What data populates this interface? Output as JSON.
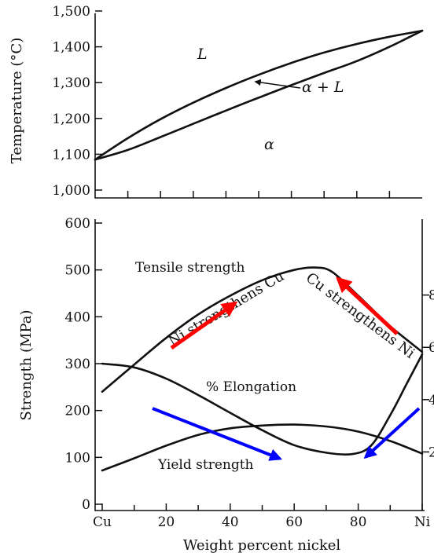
{
  "chart_data": [
    {
      "type": "line",
      "title": "",
      "xlabel": "",
      "ylabel": "Temperature (°C)",
      "xlim": [
        0,
        100
      ],
      "ylim": [
        950,
        1500
      ],
      "y_ticks": [
        "1,000",
        "1,100",
        "1,200",
        "1,300",
        "1,400",
        "1,500"
      ],
      "y_tick_values": [
        1000,
        1100,
        1200,
        1300,
        1400,
        1500
      ],
      "x_minor_ticks": [
        10,
        20,
        30,
        40,
        50,
        60,
        70,
        80,
        90
      ],
      "series": [
        {
          "x": [
            0,
            10,
            20,
            30,
            40,
            50,
            60,
            70,
            80,
            90,
            100
          ],
          "y": [
            1085,
            1145,
            1198,
            1244,
            1285,
            1322,
            1355,
            1384,
            1408,
            1428,
            1445
          ]
        },
        {
          "x": [
            0,
            10,
            20,
            30,
            40,
            50,
            60,
            70,
            80,
            90,
            100
          ],
          "y": [
            1085,
            1112,
            1148,
            1185,
            1222,
            1258,
            1293,
            1327,
            1360,
            1400,
            1445
          ]
        }
      ],
      "regions": [
        {
          "label": "L",
          "x": 33,
          "y": 1350
        },
        {
          "label": "α + L",
          "x": 77,
          "y": 1240
        },
        {
          "label": "α",
          "x": 55,
          "y": 1135
        }
      ]
    },
    {
      "type": "line",
      "title": "",
      "xlabel": "Weight percent nickel",
      "ylabel": "Strength (MPa)",
      "xlim": [
        0,
        100
      ],
      "ylim": [
        0,
        600
      ],
      "x_ticks": [
        "Cu",
        "20",
        "40",
        "60",
        "80",
        "Ni"
      ],
      "x_tick_values": [
        0,
        20,
        40,
        60,
        80,
        100
      ],
      "y_ticks": [
        "0",
        "100",
        "200",
        "300",
        "400",
        "500",
        "600"
      ],
      "y_tick_values": [
        0,
        100,
        200,
        300,
        400,
        500,
        600
      ],
      "right_axis_ticks": [
        "8",
        "6",
        "4",
        "2"
      ],
      "right_axis_tick_values": [
        80,
        60,
        40,
        20
      ],
      "series": [
        {
          "name": "Tensile strength",
          "x": [
            0,
            10,
            20,
            30,
            40,
            50,
            60,
            67,
            72,
            80,
            90,
            100
          ],
          "y": [
            240,
            298,
            355,
            405,
            445,
            478,
            500,
            505,
            495,
            445,
            380,
            325
          ]
        },
        {
          "name": "% Elongation",
          "x": [
            0,
            10,
            20,
            30,
            40,
            50,
            60,
            70,
            78,
            84,
            90,
            95,
            100
          ],
          "y": [
            300,
            292,
            268,
            233,
            195,
            158,
            126,
            110,
            107,
            125,
            190,
            255,
            320
          ]
        },
        {
          "name": "Yield strength",
          "x": [
            0,
            10,
            20,
            30,
            40,
            50,
            60,
            70,
            80,
            90,
            100
          ],
          "y": [
            72,
            98,
            125,
            148,
            162,
            168,
            170,
            166,
            155,
            135,
            108
          ]
        }
      ],
      "annotations": [
        {
          "text": "Ni strengthens Cu",
          "color": "#ff0000"
        },
        {
          "text": "Cu strengthens Ni",
          "color": "#ff0000"
        },
        {
          "arrows_color": "#0000ff"
        }
      ]
    }
  ]
}
